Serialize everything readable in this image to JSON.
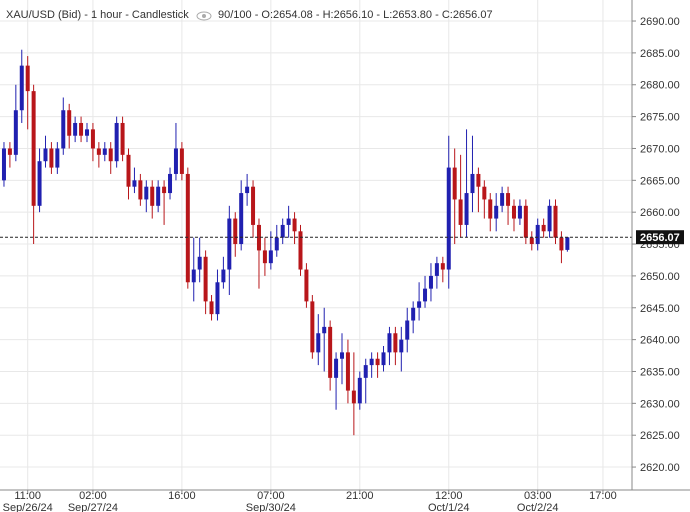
{
  "chart_data": {
    "type": "candlestick",
    "title": "XAU/USD (Bid) - 1 hour - Candlestick",
    "subtitle": "90/100 - O:2654.08 - H:2656.10 - L:2653.80 - C:2656.07",
    "up_color": "#2020b0",
    "down_color": "#b8161a",
    "grid": true,
    "xlim": [
      -0.67,
      105.9
    ],
    "ylim": [
      2616.4,
      2693.3
    ],
    "xticks": [
      {
        "value": 4,
        "label": "11:00\nSep/26/24"
      },
      {
        "value": 15,
        "label": "02:00\nSep/27/24"
      },
      {
        "value": 30,
        "label": "16:00"
      },
      {
        "value": 45,
        "label": "07:00\nSep/30/24"
      },
      {
        "value": 60,
        "label": "21:00"
      },
      {
        "value": 75,
        "label": "12:00\nOct/1/24"
      },
      {
        "value": 90,
        "label": "03:00\nOct/2/24"
      },
      {
        "value": 101,
        "label": "17:00"
      }
    ],
    "yticks": [
      {
        "value": 2620,
        "label": "2620.00"
      },
      {
        "value": 2625,
        "label": "2625.00"
      },
      {
        "value": 2630,
        "label": "2630.00"
      },
      {
        "value": 2635,
        "label": "2635.00"
      },
      {
        "value": 2640,
        "label": "2640.00"
      },
      {
        "value": 2645,
        "label": "2645.00"
      },
      {
        "value": 2650,
        "label": "2650.00"
      },
      {
        "value": 2655,
        "label": "2655.00"
      },
      {
        "value": 2660,
        "label": "2660.00"
      },
      {
        "value": 2665,
        "label": "2665.00"
      },
      {
        "value": 2670,
        "label": "2670.00"
      },
      {
        "value": 2675,
        "label": "2675.00"
      },
      {
        "value": 2680,
        "label": "2680.00"
      },
      {
        "value": 2685,
        "label": "2685.00"
      },
      {
        "value": 2690,
        "label": "2690.00"
      }
    ],
    "open": [
      2665,
      2670,
      2669,
      2676,
      2683,
      2679,
      2661,
      2668,
      2670,
      2667,
      2670,
      2676,
      2672,
      2674,
      2672,
      2673,
      2670,
      2669,
      2670,
      2668,
      2674,
      2669,
      2664,
      2665,
      2662,
      2664,
      2661,
      2664,
      2663,
      2666,
      2670,
      2666,
      2649,
      2651,
      2653,
      2646,
      2644,
      2649,
      2651,
      2659,
      2655,
      2663,
      2664,
      2658,
      2654,
      2652,
      2654,
      2656,
      2658,
      2659,
      2657,
      2651,
      2646,
      2638,
      2641,
      2642,
      2634,
      2637,
      2638,
      2632,
      2630,
      2634,
      2636,
      2637,
      2636,
      2638,
      2641,
      2638,
      2640,
      2643,
      2645,
      2646,
      2648,
      2650,
      2652,
      2651,
      2667,
      2662,
      2658,
      2663,
      2666,
      2664,
      2662,
      2659,
      2661,
      2663,
      2661,
      2659,
      2661,
      2656,
      2655,
      2658,
      2657,
      2661,
      2656,
      2654.08
    ],
    "high": [
      2671,
      2671,
      2680,
      2685.5,
      2684.5,
      2680,
      2670,
      2672,
      2671,
      2671,
      2678,
      2677,
      2675,
      2675,
      2674,
      2674,
      2671,
      2671,
      2671,
      2675,
      2675,
      2670,
      2667,
      2666,
      2665,
      2665,
      2665,
      2665,
      2667,
      2674,
      2671,
      2667,
      2656,
      2656,
      2654,
      2647,
      2651,
      2653,
      2661,
      2660,
      2665,
      2666,
      2665,
      2659,
      2656,
      2657,
      2658,
      2659,
      2661,
      2660,
      2658,
      2652,
      2647,
      2644,
      2645,
      2643,
      2638,
      2641,
      2640,
      2638,
      2635,
      2637,
      2638,
      2638,
      2639,
      2642,
      2642,
      2642,
      2645,
      2646,
      2649,
      2650,
      2652,
      2653,
      2653,
      2672,
      2670,
      2669,
      2673,
      2672,
      2667,
      2665,
      2663,
      2663,
      2664,
      2664,
      2662,
      2662,
      2662,
      2657,
      2659,
      2659,
      2662,
      2662,
      2657,
      2656.1
    ],
    "low": [
      2664,
      2667,
      2668,
      2674,
      2673,
      2655,
      2660,
      2667,
      2666,
      2666,
      2669,
      2670,
      2671,
      2671,
      2671,
      2668,
      2667,
      2668,
      2666,
      2667,
      2668,
      2662,
      2663,
      2661,
      2660,
      2659,
      2660,
      2658,
      2662,
      2665,
      2665,
      2648,
      2646,
      2649,
      2644,
      2643,
      2643,
      2648,
      2647,
      2653,
      2654,
      2661,
      2656,
      2648,
      2650,
      2651,
      2653,
      2655,
      2656,
      2655,
      2650,
      2645,
      2637,
      2636,
      2635,
      2632,
      2629,
      2633,
      2630,
      2625,
      2629,
      2630,
      2634,
      2634,
      2635,
      2636,
      2636,
      2635,
      2638,
      2641,
      2643,
      2645,
      2646,
      2648,
      2649,
      2648,
      2655,
      2656,
      2656,
      2660,
      2660,
      2659,
      2657,
      2657,
      2660,
      2658,
      2657,
      2658,
      2655,
      2654,
      2654,
      2656,
      2656,
      2655,
      2652,
      2653.8
    ],
    "close": [
      2670,
      2669,
      2676,
      2683,
      2679,
      2661,
      2668,
      2670,
      2667,
      2670,
      2676,
      2672,
      2674,
      2672,
      2673,
      2670,
      2669,
      2670,
      2668,
      2674,
      2669,
      2664,
      2665,
      2662,
      2664,
      2661,
      2664,
      2663,
      2666,
      2670,
      2666,
      2649,
      2651,
      2653,
      2646,
      2644,
      2649,
      2651,
      2659,
      2655,
      2663,
      2664,
      2658,
      2654,
      2652,
      2654,
      2656,
      2658,
      2659,
      2657,
      2651,
      2646,
      2638,
      2641,
      2642,
      2634,
      2637,
      2638,
      2632,
      2630,
      2634,
      2636,
      2637,
      2636,
      2638,
      2641,
      2638,
      2640,
      2643,
      2645,
      2646,
      2648,
      2650,
      2652,
      2651,
      2667,
      2662,
      2658,
      2663,
      2666,
      2664,
      2662,
      2659,
      2661,
      2663,
      2661,
      2659,
      2661,
      2656,
      2655,
      2658,
      2657,
      2661,
      2656,
      2654,
      2656.07
    ]
  }
}
